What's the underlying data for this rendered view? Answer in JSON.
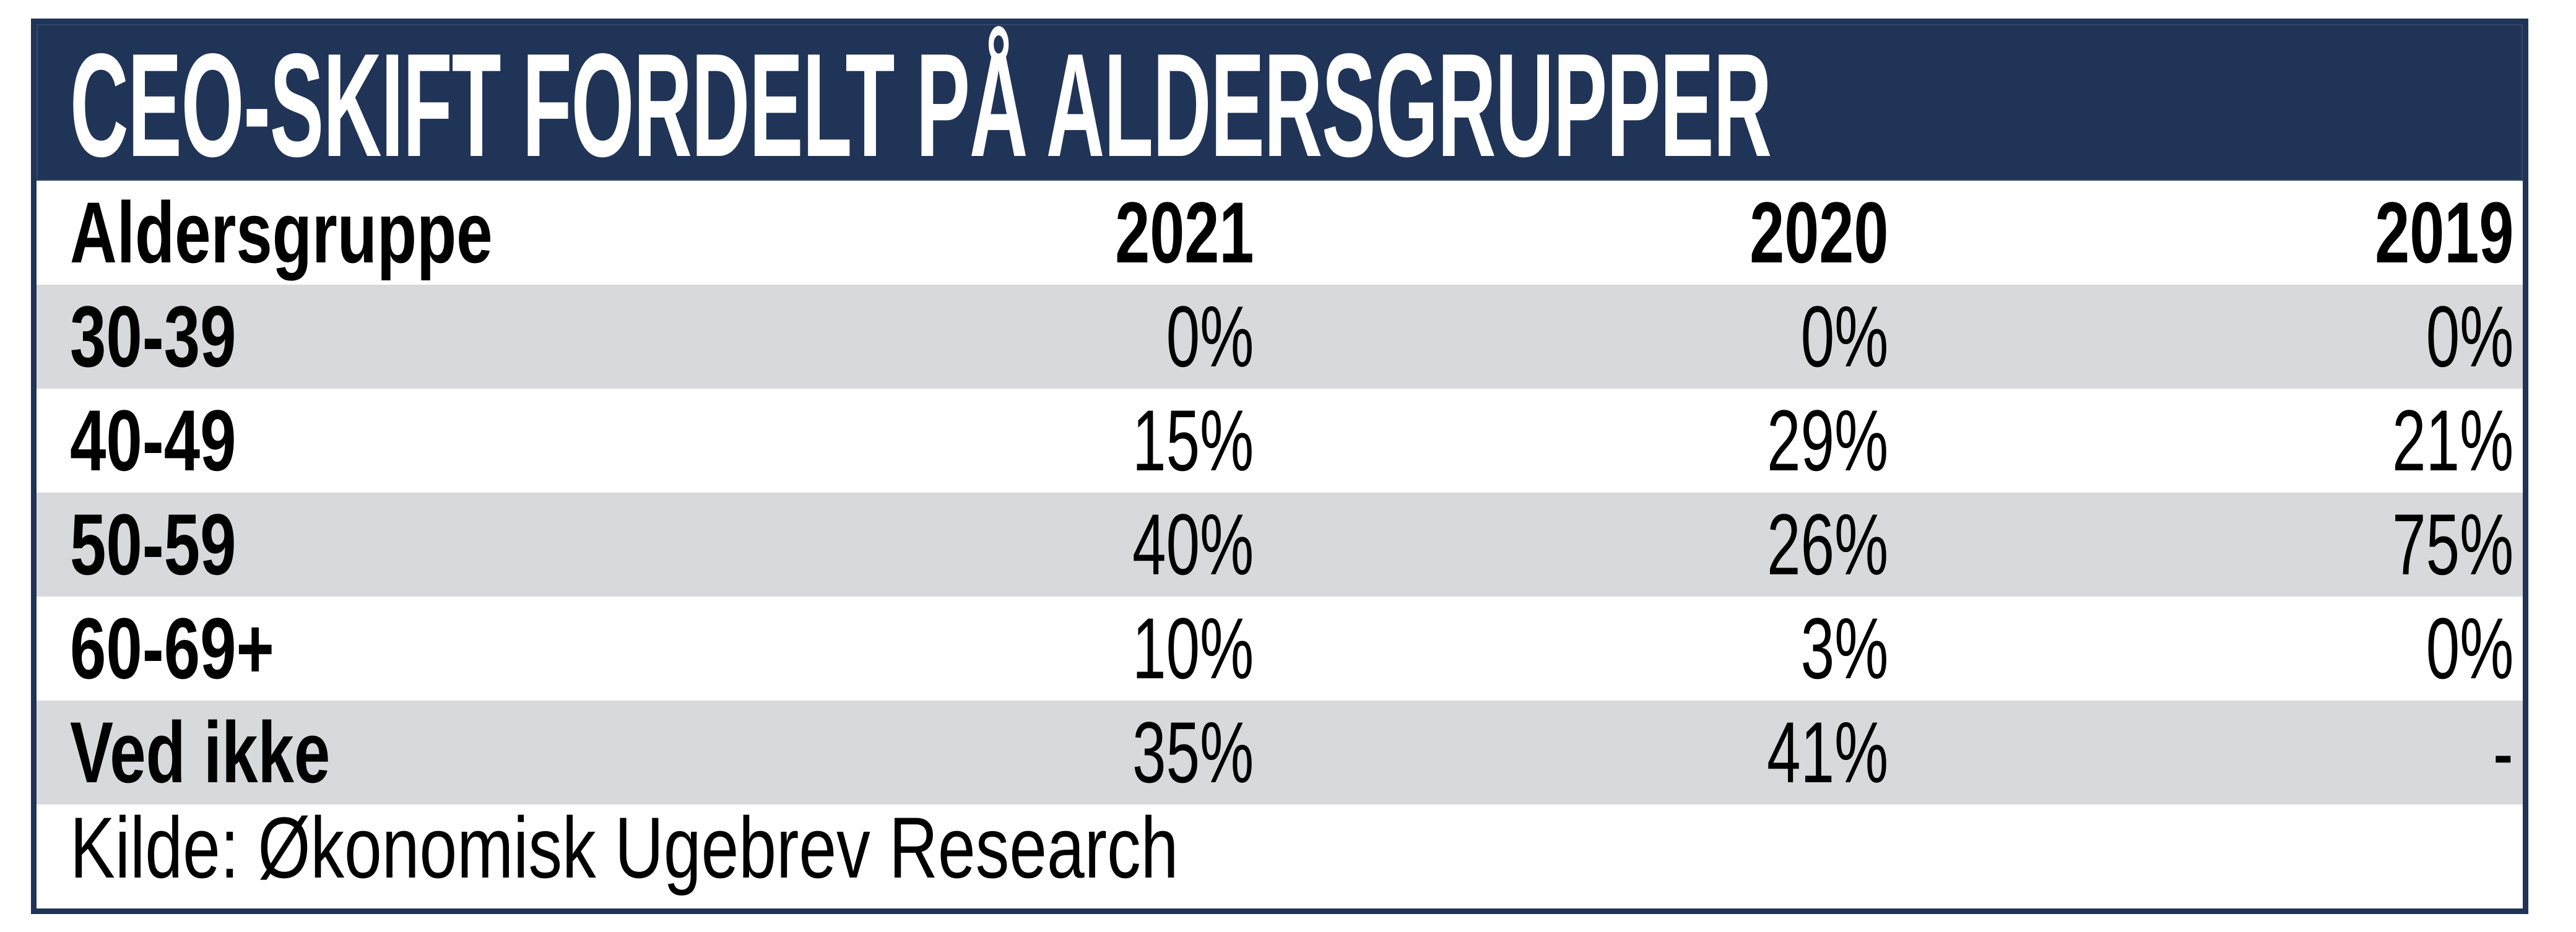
{
  "title": "CEO-SKIFT FORDELT PÅ ALDERSGRUPPER",
  "table": {
    "columns": [
      "Aldersgruppe",
      "2021",
      "2020",
      "2019"
    ],
    "rows": [
      {
        "label": "30-39",
        "values": [
          "0%",
          "0%",
          "0%"
        ]
      },
      {
        "label": "40-49",
        "values": [
          "15%",
          "29%",
          "21%"
        ]
      },
      {
        "label": "50-59",
        "values": [
          "40%",
          "26%",
          "75%"
        ]
      },
      {
        "label": "60-69+",
        "values": [
          "10%",
          "3%",
          "0%"
        ]
      },
      {
        "label": "Ved ikke",
        "values": [
          "35%",
          "41%",
          "-"
        ]
      }
    ]
  },
  "source": "Kilde: Økonomisk Ugebrev Research",
  "colors": {
    "navy": "#203457",
    "stripe_gray": "#d8d9dd",
    "text": "#000000",
    "title_text": "#ffffff",
    "background": "#ffffff"
  },
  "chart_data": {
    "type": "table",
    "title": "CEO-SKIFT FORDELT PÅ ALDERSGRUPPER",
    "columns": [
      "Aldersgruppe",
      "2021",
      "2020",
      "2019"
    ],
    "categories": [
      "30-39",
      "40-49",
      "50-59",
      "60-69+",
      "Ved ikke"
    ],
    "series": [
      {
        "name": "2021",
        "values": [
          0,
          15,
          40,
          10,
          35
        ]
      },
      {
        "name": "2020",
        "values": [
          0,
          29,
          26,
          3,
          41
        ]
      },
      {
        "name": "2019",
        "values": [
          0,
          21,
          75,
          0,
          null
        ]
      }
    ],
    "value_format": "percent",
    "missing_value_display": "-",
    "source": "Kilde: Økonomisk Ugebrev Research",
    "layout": {
      "striped_rows": true,
      "value_alignment": "right",
      "header_band_color": "#203457"
    }
  }
}
